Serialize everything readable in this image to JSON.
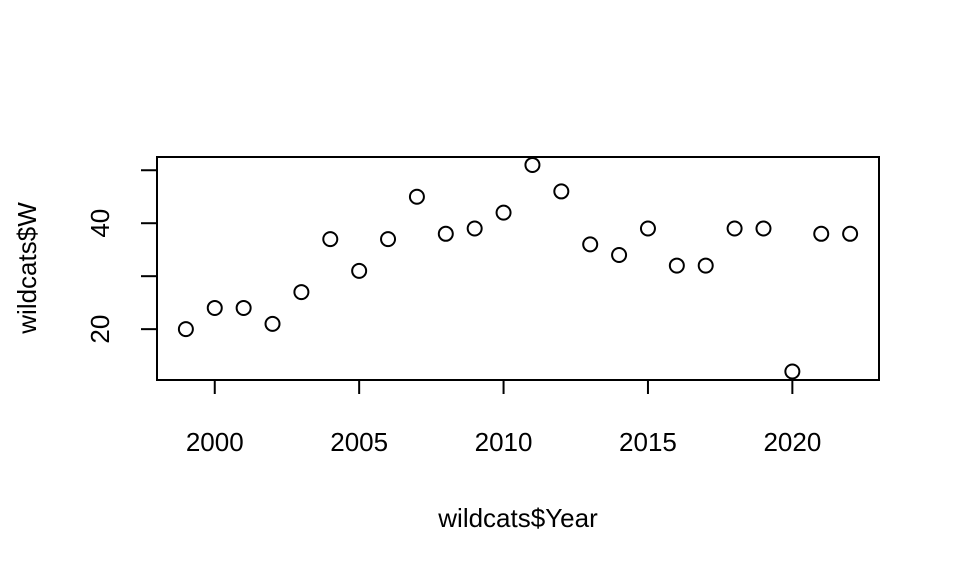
{
  "chart_data": {
    "type": "scatter",
    "title": "",
    "xlabel": "wildcats$Year",
    "ylabel": "wildcats$W",
    "xlim": [
      1998,
      2023
    ],
    "ylim": [
      10.4,
      52.5
    ],
    "x_ticks": [
      2000,
      2005,
      2010,
      2015,
      2020
    ],
    "y_ticks": [
      20,
      30,
      40,
      50
    ],
    "y_tick_labels": [
      "20",
      "",
      "40",
      ""
    ],
    "grid": false,
    "legend": "none",
    "marker": "open-circle",
    "marker_color": "#000000",
    "points": [
      {
        "x": 1999,
        "y": 20
      },
      {
        "x": 2000,
        "y": 24
      },
      {
        "x": 2001,
        "y": 24
      },
      {
        "x": 2002,
        "y": 21
      },
      {
        "x": 2003,
        "y": 27
      },
      {
        "x": 2004,
        "y": 37
      },
      {
        "x": 2005,
        "y": 31
      },
      {
        "x": 2006,
        "y": 37
      },
      {
        "x": 2007,
        "y": 45
      },
      {
        "x": 2008,
        "y": 38
      },
      {
        "x": 2009,
        "y": 39
      },
      {
        "x": 2010,
        "y": 42
      },
      {
        "x": 2011,
        "y": 51
      },
      {
        "x": 2012,
        "y": 46
      },
      {
        "x": 2013,
        "y": 36
      },
      {
        "x": 2014,
        "y": 34
      },
      {
        "x": 2015,
        "y": 39
      },
      {
        "x": 2016,
        "y": 32
      },
      {
        "x": 2017,
        "y": 32
      },
      {
        "x": 2018,
        "y": 39
      },
      {
        "x": 2019,
        "y": 39
      },
      {
        "x": 2020,
        "y": 12
      },
      {
        "x": 2021,
        "y": 38
      },
      {
        "x": 2022,
        "y": 38
      }
    ]
  }
}
